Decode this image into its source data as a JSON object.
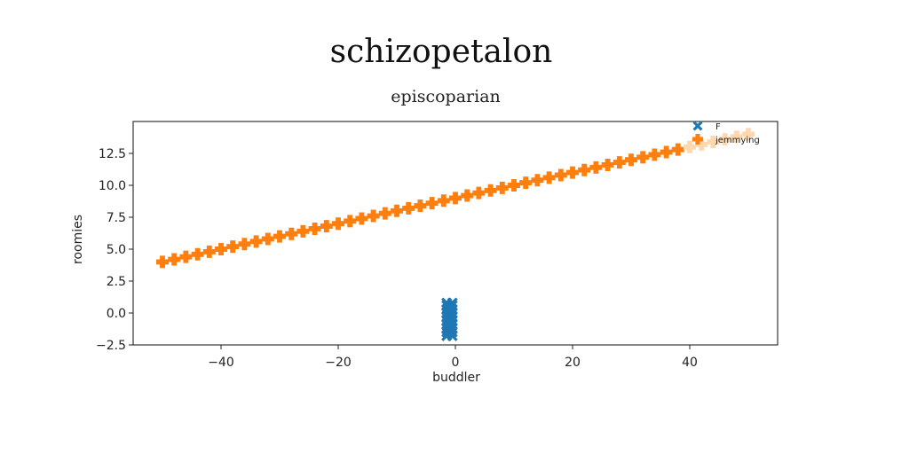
{
  "chart_data": {
    "type": "scatter",
    "suptitle": "schizopetalon",
    "title": "episcoparian",
    "xlabel": "buddler",
    "ylabel": "roomies",
    "xlim": [
      -55,
      55
    ],
    "ylim": [
      -2.5,
      15
    ],
    "xticks": [
      -40,
      -20,
      0,
      20,
      40
    ],
    "xtick_labels": [
      "−40",
      "−20",
      "0",
      "20",
      "40"
    ],
    "yticks": [
      -2.5,
      0.0,
      2.5,
      5.0,
      7.5,
      10.0,
      12.5
    ],
    "ytick_labels": [
      "−2.5",
      "0.0",
      "2.5",
      "5.0",
      "7.5",
      "10.0",
      "12.5"
    ],
    "grid": false,
    "legend_position": "top-right",
    "series": [
      {
        "name": "F",
        "marker": "x",
        "color": "#1f77b4",
        "x": [
          -1.5,
          -1.5,
          -1.5,
          -1.5,
          -1.5,
          -1.5,
          -1.5,
          -1.5,
          -1.5,
          -1.5,
          -0.5,
          -0.5,
          -0.5,
          -0.5,
          -0.5,
          -0.5,
          -0.5,
          -0.5,
          -0.5,
          -0.5
        ],
        "y": [
          -1.8,
          -1.5,
          -1.2,
          -0.9,
          -0.6,
          -0.3,
          0.0,
          0.3,
          0.6,
          0.8,
          -1.8,
          -1.5,
          -1.2,
          -0.9,
          -0.6,
          -0.3,
          0.0,
          0.3,
          0.6,
          0.8
        ]
      },
      {
        "name": "jemmying",
        "marker": "P",
        "color": "#ff7f0e",
        "x": [
          -50,
          -48,
          -46,
          -44,
          -42,
          -40,
          -38,
          -36,
          -34,
          -32,
          -30,
          -28,
          -26,
          -24,
          -22,
          -20,
          -18,
          -16,
          -14,
          -12,
          -10,
          -8,
          -6,
          -4,
          -2,
          0,
          2,
          4,
          6,
          8,
          10,
          12,
          14,
          16,
          18,
          20,
          22,
          24,
          26,
          28,
          30,
          32,
          34,
          36,
          38,
          40,
          42,
          44,
          46,
          48,
          50
        ],
        "y": [
          4.0,
          4.2,
          4.4,
          4.6,
          4.8,
          5.0,
          5.2,
          5.4,
          5.6,
          5.8,
          6.0,
          6.2,
          6.4,
          6.6,
          6.8,
          7.0,
          7.2,
          7.4,
          7.6,
          7.8,
          8.0,
          8.2,
          8.4,
          8.6,
          8.8,
          9.0,
          9.2,
          9.4,
          9.6,
          9.8,
          10.0,
          10.2,
          10.4,
          10.6,
          10.8,
          11.0,
          11.2,
          11.4,
          11.6,
          11.8,
          12.0,
          12.2,
          12.4,
          12.6,
          12.8,
          13.0,
          13.2,
          13.4,
          13.6,
          13.8,
          14.0
        ]
      }
    ]
  }
}
